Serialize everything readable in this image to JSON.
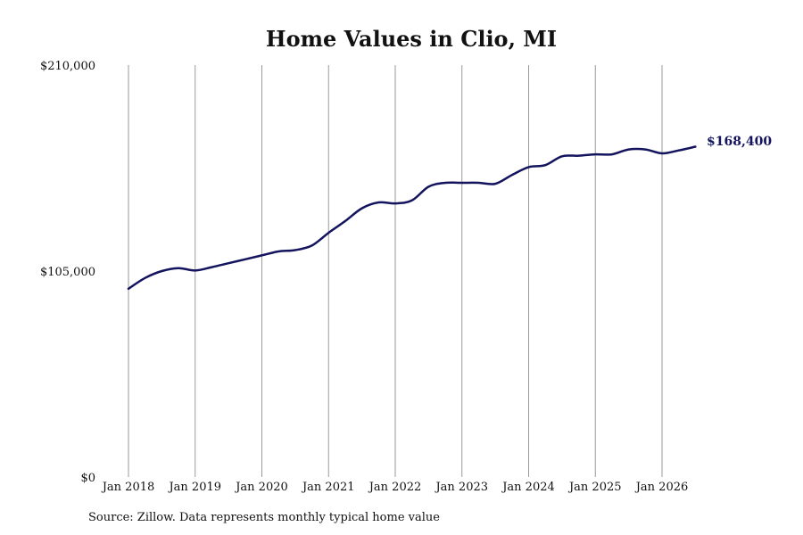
{
  "chart_data": {
    "type": "line",
    "title": "Home Values in Clio, MI",
    "xlabel": "",
    "ylabel": "",
    "y_ticks": [
      "$210,000",
      "$105,000",
      "$0"
    ],
    "y_tick_values": [
      210000,
      105000,
      0
    ],
    "ylim": [
      0,
      210000
    ],
    "x_ticks": [
      "Jan 2018",
      "Jan 2019",
      "Jan 2020",
      "Jan 2021",
      "Jan 2022",
      "Jan 2023",
      "Jan 2024",
      "Jan 2025",
      "Jan 2026"
    ],
    "x_tick_values": [
      "2018-01",
      "2019-01",
      "2020-01",
      "2021-01",
      "2022-01",
      "2023-01",
      "2024-01",
      "2025-01",
      "2026-01"
    ],
    "grid": "vertical",
    "legend": "none",
    "end_label": "$168,400",
    "line_color": "#14145e",
    "series": [
      {
        "x": [
          "2018-01",
          "2018-04",
          "2018-07",
          "2018-10",
          "2019-01",
          "2019-04",
          "2019-07",
          "2019-10",
          "2020-01",
          "2020-04",
          "2020-07",
          "2020-10",
          "2021-01",
          "2021-04",
          "2021-07",
          "2021-10",
          "2022-01",
          "2022-04",
          "2022-07",
          "2022-10",
          "2023-01",
          "2023-04",
          "2023-07",
          "2023-10",
          "2024-01",
          "2024-04",
          "2024-07",
          "2024-10",
          "2025-01",
          "2025-04",
          "2025-07",
          "2025-10",
          "2026-01",
          "2026-04",
          "2026-07"
        ],
        "values": [
          96000,
          101500,
          105000,
          106500,
          105300,
          107000,
          109000,
          111000,
          113000,
          115000,
          115700,
          118000,
          124500,
          130500,
          137000,
          140000,
          139500,
          141000,
          148000,
          150000,
          150000,
          150000,
          149500,
          154000,
          158000,
          159000,
          163500,
          163800,
          164500,
          164500,
          167000,
          167000,
          165000,
          166500,
          168400
        ]
      }
    ]
  },
  "footer": {
    "source": "Source: Zillow. Data represents monthly typical home value"
  }
}
